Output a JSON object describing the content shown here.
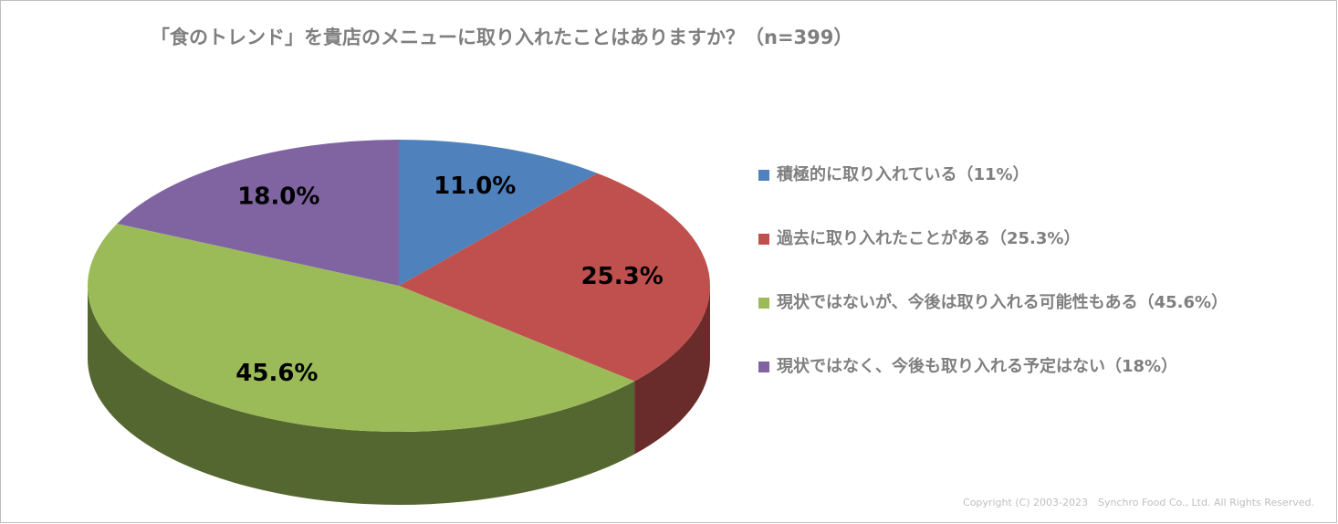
{
  "chart_data": {
    "type": "pie",
    "title": "「食のトレンド」を貴店のメニューに取り入れたことはありますか？（n=399）",
    "categories": [
      "積極的に取り入れている（11%）",
      "過去に取り入れたことがある（25.3%）",
      "現状ではないが、今後は取り入れる可能性もある（45.6%）",
      "現状ではなく、今後も取り入れる予定はない（18%）"
    ],
    "values": [
      11.0,
      25.3,
      45.6,
      18.0
    ],
    "value_labels": [
      "11.0%",
      "25.3%",
      "45.6%",
      "18.0%"
    ],
    "colors": [
      "#4f81bd",
      "#c0504d",
      "#9bbb59",
      "#8064a2"
    ],
    "legend": "right",
    "footer": "Copyright (C) 2003-2023　Synchro Food Co., Ltd. All Rights Reserved."
  }
}
